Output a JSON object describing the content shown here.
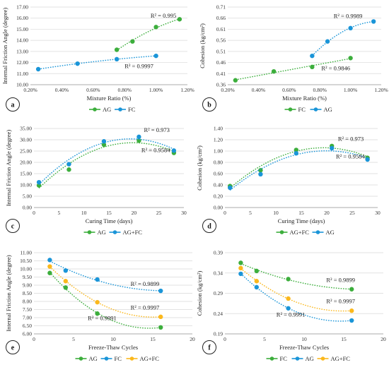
{
  "chart_data": [
    {
      "type": "scatter",
      "panel": "a",
      "xlabel": "Mixture Ratio (%)",
      "ylabel": "Internal Friction Angle (degree)",
      "xlim": [
        0.2,
        1.2
      ],
      "ylim": [
        10,
        17
      ],
      "xticks": [
        0.2,
        0.4,
        0.6,
        0.8,
        1.0,
        1.2
      ],
      "yticks": [
        10,
        11,
        12,
        13,
        14,
        15,
        16,
        17
      ],
      "xtick_labels": [
        "0.20%",
        "0.40%",
        "0.60%",
        "0.80%",
        "1.00%",
        "1.20%"
      ],
      "ytick_labels": [
        "10.00",
        "11.00",
        "12.00",
        "13.00",
        "14.00",
        "15.00",
        "16.00",
        "17.00"
      ],
      "series": [
        {
          "name": "AG",
          "color": "#3cae3c",
          "x": [
            0.75,
            0.85,
            1.0,
            1.15
          ],
          "y": [
            13.15,
            13.9,
            15.2,
            15.9
          ],
          "fit": "poly2",
          "r2": "R² = 0.995",
          "r2_pos": [
            0.965,
            16.05
          ]
        },
        {
          "name": "FC",
          "color": "#1a95d8",
          "x": [
            0.25,
            0.5,
            0.75,
            1.0
          ],
          "y": [
            11.4,
            11.9,
            12.3,
            12.6
          ],
          "fit": "poly2",
          "r2": "R² = 0.9997",
          "r2_pos": [
            0.8,
            11.5
          ]
        }
      ],
      "legend": [
        "AG",
        "FC"
      ]
    },
    {
      "type": "scatter",
      "panel": "b",
      "xlabel": "Mixture Ratio (%)",
      "ylabel": "Cohesion (kg/cm²)",
      "xlim": [
        0.2,
        1.2
      ],
      "ylim": [
        0.36,
        0.71
      ],
      "xticks": [
        0.2,
        0.4,
        0.6,
        0.8,
        1.0,
        1.2
      ],
      "yticks": [
        0.36,
        0.41,
        0.46,
        0.51,
        0.56,
        0.61,
        0.66,
        0.71
      ],
      "xtick_labels": [
        "0.20%",
        "0.40%",
        "0.60%",
        "0.80%",
        "1.00%",
        "1.20%"
      ],
      "ytick_labels": [
        "0.36",
        "0.41",
        "0.46",
        "0.51",
        "0.56",
        "0.61",
        "0.66",
        "0.71"
      ],
      "series": [
        {
          "name": "FC",
          "color": "#3cae3c",
          "x": [
            0.25,
            0.5,
            0.75,
            1.0
          ],
          "y": [
            0.38,
            0.42,
            0.44,
            0.48
          ],
          "fit": "poly2",
          "r2": "R² = 0.9846",
          "r2_pos": [
            0.81,
            0.425
          ]
        },
        {
          "name": "AG",
          "color": "#1a95d8",
          "x": [
            0.75,
            0.85,
            1.0,
            1.15
          ],
          "y": [
            0.49,
            0.555,
            0.615,
            0.645
          ],
          "fit": "poly2",
          "r2": "R² = 0.9989",
          "r2_pos": [
            0.89,
            0.66
          ]
        }
      ],
      "legend": [
        "FC",
        "AG"
      ]
    },
    {
      "type": "scatter",
      "panel": "c",
      "xlabel": "Curing Time (days)",
      "ylabel": "Internal Friction Angle (degree)",
      "xlim": [
        0,
        30
      ],
      "ylim": [
        0,
        35
      ],
      "xticks": [
        0,
        5,
        10,
        15,
        20,
        25,
        30
      ],
      "yticks": [
        0,
        5,
        10,
        15,
        20,
        25,
        30,
        35
      ],
      "xtick_labels": [
        "0",
        "5",
        "10",
        "15",
        "20",
        "25",
        "30"
      ],
      "ytick_labels": [
        "0.00",
        "5.00",
        "10.00",
        "15.00",
        "20.00",
        "25.00",
        "30.00",
        "35.00"
      ],
      "series": [
        {
          "name": "AG",
          "color": "#3cae3c",
          "x": [
            1,
            7,
            14,
            21,
            28
          ],
          "y": [
            9.8,
            16.8,
            27.8,
            29.6,
            24.2
          ],
          "fit": "poly2",
          "r2": "R² = 0.9584",
          "r2_pos": [
            21.5,
            24.6
          ]
        },
        {
          "name": "AG+FC",
          "color": "#1a95d8",
          "x": [
            1,
            7,
            14,
            21,
            28
          ],
          "y": [
            11.2,
            19.2,
            29.3,
            31.3,
            25.2
          ],
          "fit": "poly2",
          "r2": "R² = 0.973",
          "r2_pos": [
            22.0,
            33.5
          ]
        }
      ],
      "legend": [
        "AG",
        "AG+FC"
      ]
    },
    {
      "type": "scatter",
      "panel": "d",
      "xlabel": "Curing Time (days)",
      "ylabel": "Cohesion (kg/cm²)",
      "xlim": [
        0,
        30
      ],
      "ylim": [
        0,
        1.4
      ],
      "xticks": [
        0,
        5,
        10,
        15,
        20,
        25,
        30
      ],
      "yticks": [
        0,
        0.2,
        0.4,
        0.6,
        0.8,
        1.0,
        1.2,
        1.4
      ],
      "xtick_labels": [
        "0",
        "5",
        "10",
        "15",
        "20",
        "25",
        "30"
      ],
      "ytick_labels": [
        "0.00",
        "0.20",
        "0.40",
        "0.60",
        "0.80",
        "1.00",
        "1.20",
        "1.40"
      ],
      "series": [
        {
          "name": "AG+FC",
          "color": "#3cae3c",
          "x": [
            1,
            7,
            14,
            21,
            28
          ],
          "y": [
            0.38,
            0.66,
            1.02,
            1.09,
            0.88
          ],
          "fit": "poly2",
          "r2": "R² = 0.973",
          "r2_pos": [
            22.2,
            1.18
          ]
        },
        {
          "name": "AG",
          "color": "#1a95d8",
          "x": [
            1,
            7,
            14,
            21,
            28
          ],
          "y": [
            0.35,
            0.59,
            0.96,
            1.05,
            0.85
          ],
          "fit": "poly2",
          "r2": "R² = 0.9584",
          "r2_pos": [
            21.8,
            0.87
          ]
        }
      ],
      "legend": [
        "AG+FC",
        "AG"
      ]
    },
    {
      "type": "scatter",
      "panel": "e",
      "xlabel": "Freeze-Thaw Cycles",
      "ylabel": "Internal Friction Angle (degree)",
      "xlim": [
        0,
        20
      ],
      "ylim": [
        6,
        11
      ],
      "xticks": [
        0,
        5,
        10,
        15,
        20
      ],
      "yticks": [
        6,
        6.5,
        7,
        7.5,
        8,
        8.5,
        9,
        9.5,
        10,
        10.5,
        11
      ],
      "xtick_labels": [
        "0",
        "5",
        "10",
        "15",
        "20"
      ],
      "ytick_labels": [
        "6.00",
        "6.50",
        "7.00",
        "7.50",
        "8.00",
        "8.50",
        "9.00",
        "9.50",
        "10.00",
        "10.50",
        "11.00"
      ],
      "series": [
        {
          "name": "AG",
          "color": "#3cae3c",
          "x": [
            2,
            4,
            8,
            16
          ],
          "y": [
            9.75,
            8.85,
            7.25,
            6.4
          ],
          "fit": "poly2",
          "r2": "R² = 0.9991",
          "r2_pos": [
            6.8,
            6.85
          ]
        },
        {
          "name": "FC",
          "color": "#1a95d8",
          "x": [
            2,
            4,
            8,
            16
          ],
          "y": [
            10.55,
            9.9,
            9.35,
            8.65
          ],
          "fit": "poly2",
          "r2": "R² = 0.9899",
          "r2_pos": [
            12.2,
            8.95
          ]
        },
        {
          "name": "AG+FC",
          "color": "#fbb81c",
          "x": [
            2,
            4,
            8,
            16
          ],
          "y": [
            10.15,
            9.25,
            7.95,
            7.05
          ],
          "fit": "poly2",
          "r2": "R² = 0.9997",
          "r2_pos": [
            12.2,
            7.5
          ]
        }
      ],
      "legend": [
        "AG",
        "FC",
        "AG+FC"
      ]
    },
    {
      "type": "scatter",
      "panel": "f",
      "xlabel": "Freeze-Thaw Cycles",
      "ylabel": "Cohesion (kg/cm²)",
      "xlim": [
        0,
        20
      ],
      "ylim": [
        0.19,
        0.39
      ],
      "xticks": [
        0,
        5,
        10,
        15,
        20
      ],
      "yticks": [
        0.19,
        0.24,
        0.29,
        0.34,
        0.39
      ],
      "xtick_labels": [
        "0",
        "5",
        "10",
        "15",
        "20"
      ],
      "ytick_labels": [
        "0.19",
        "0.24",
        "0.29",
        "0.34",
        "0.39"
      ],
      "series": [
        {
          "name": "FC",
          "color": "#3cae3c",
          "x": [
            2,
            4,
            8,
            16
          ],
          "y": [
            0.365,
            0.345,
            0.325,
            0.3
          ],
          "fit": "poly2",
          "r2": "R² = 0.9899",
          "r2_pos": [
            12.8,
            0.318
          ]
        },
        {
          "name": "AG",
          "color": "#1a95d8",
          "x": [
            2,
            4,
            8,
            16
          ],
          "y": [
            0.338,
            0.305,
            0.253,
            0.223
          ],
          "fit": "poly2",
          "r2": "R² = 0.9991",
          "r2_pos": [
            6.5,
            0.233
          ]
        },
        {
          "name": "AG+FC",
          "color": "#fbb81c",
          "x": [
            2,
            4,
            8,
            16
          ],
          "y": [
            0.352,
            0.32,
            0.277,
            0.247
          ],
          "fit": "poly2",
          "r2": "R² = 0.9997",
          "r2_pos": [
            12.8,
            0.266
          ]
        }
      ],
      "legend": [
        "FC",
        "AG",
        "AG+FC"
      ]
    }
  ]
}
